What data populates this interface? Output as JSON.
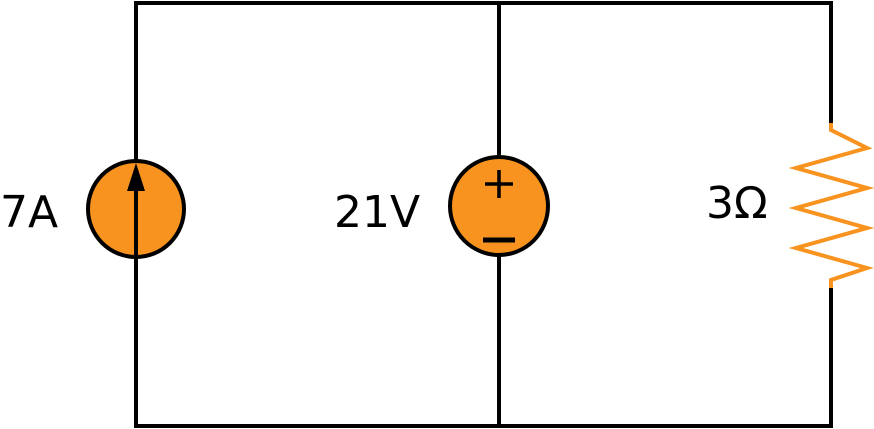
{
  "colors": {
    "wire": "#000000",
    "source_fill": "#f7931e",
    "resistor": "#f7931e",
    "background": "#ffffff"
  },
  "current_source": {
    "label": "7A",
    "icon": "arrow-up-icon"
  },
  "voltage_source": {
    "label": "21V",
    "plus_sign": "+",
    "minus_sign": "−"
  },
  "resistor": {
    "label": "3Ω"
  }
}
